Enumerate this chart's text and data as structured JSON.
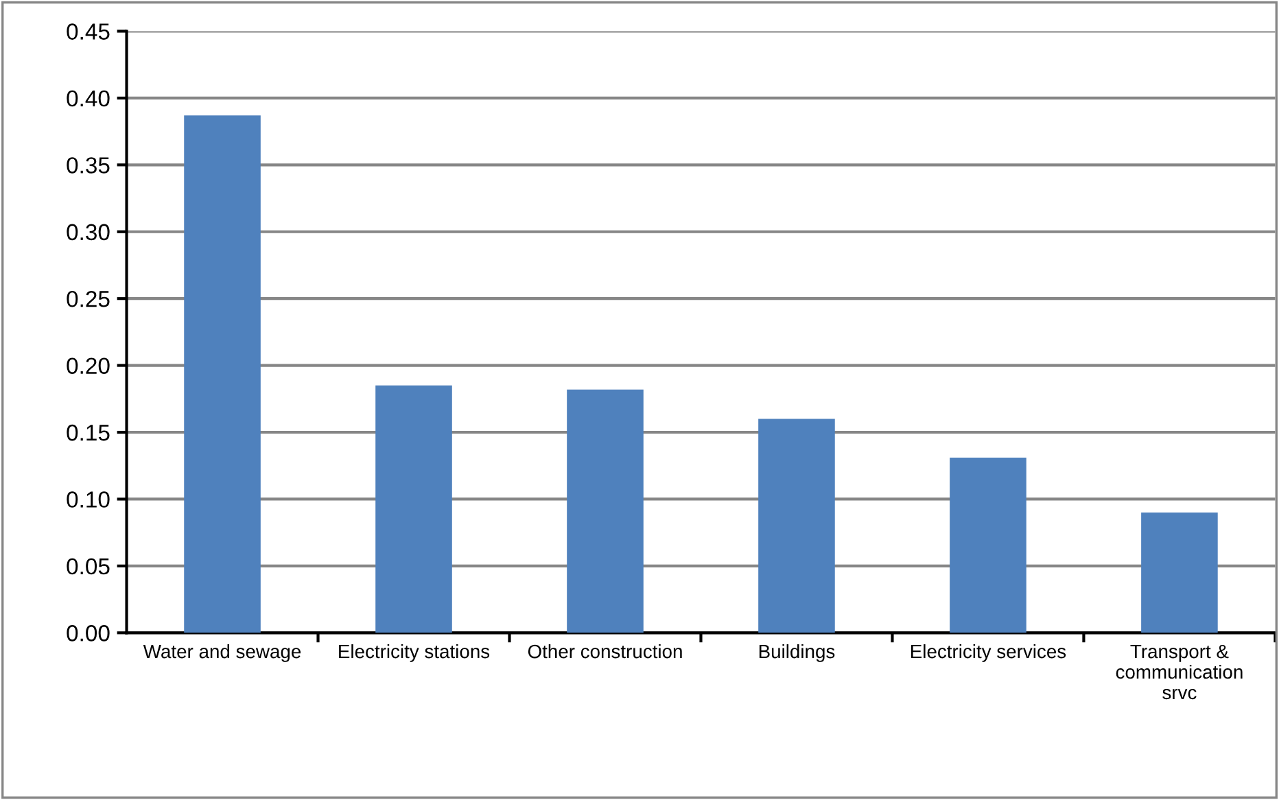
{
  "chart_data": {
    "type": "bar",
    "categories": [
      "Water and sewage",
      "Electricity stations",
      "Other construction",
      "Buildings",
      "Electricity services",
      "Transport &\ncommunication\nsrvc"
    ],
    "values": [
      0.387,
      0.185,
      0.182,
      0.16,
      0.131,
      0.09
    ],
    "color": "#4f81bd",
    "ylim": [
      0,
      0.45
    ],
    "yticks": [
      {
        "value": 0,
        "label": "0.00"
      },
      {
        "value": 0.05,
        "label": "0.05"
      },
      {
        "value": 0.1,
        "label": "0.10"
      },
      {
        "value": 0.15,
        "label": "0.15"
      },
      {
        "value": 0.2,
        "label": "0.20"
      },
      {
        "value": 0.25,
        "label": "0.25"
      },
      {
        "value": 0.3,
        "label": "0.30"
      },
      {
        "value": 0.35,
        "label": "0.35"
      },
      {
        "value": 0.4,
        "label": "0.40"
      },
      {
        "value": 0.45,
        "label": "0.45"
      }
    ],
    "grid": "y",
    "legend": false
  }
}
